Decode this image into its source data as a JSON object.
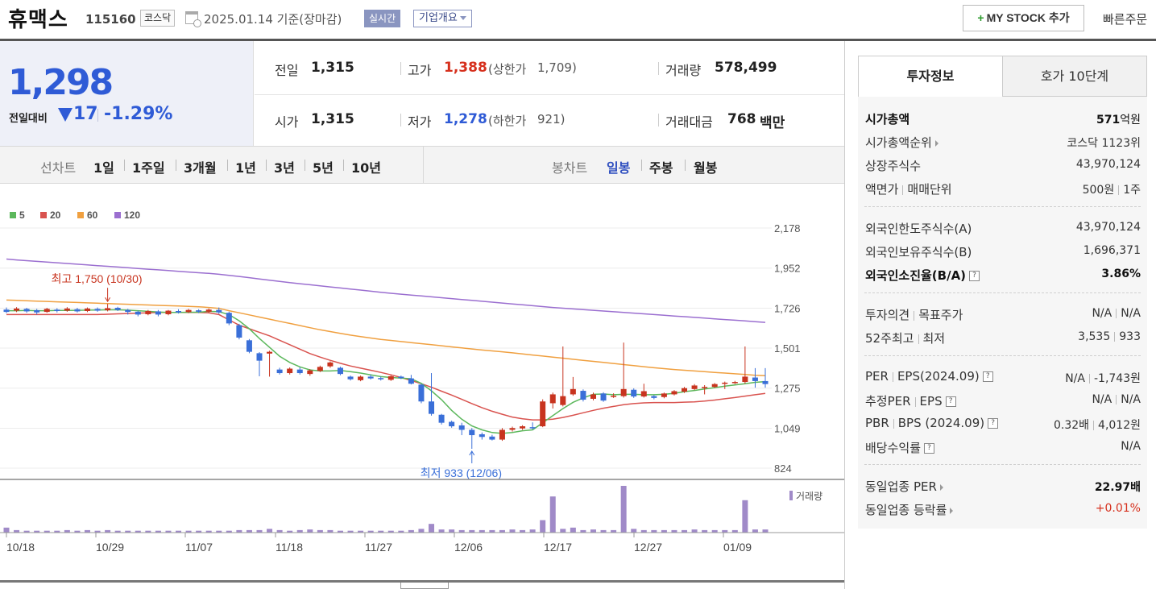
{
  "header": {
    "name": "휴맥스",
    "code": "115160",
    "market": "코스닥",
    "date_text": "2025.01.14 기준(장마감)",
    "realtime_label": "실시간",
    "company_label": "기업개요",
    "mystock_label": "MY STOCK 추가",
    "mystock_plus": "+",
    "quick_order": "빠른주문"
  },
  "price": {
    "current": "1,298",
    "change_label": "전일대비",
    "change": "17",
    "change_pct": "-1.29%"
  },
  "quote": {
    "prev_label": "전일",
    "prev": "1,315",
    "open_label": "시가",
    "open": "1,315",
    "high_label": "고가",
    "high": "1,388",
    "upper_label": "(상한가",
    "upper": "1,709)",
    "low_label": "저가",
    "low": "1,278",
    "lower_label": "(하한가",
    "lower": "921)",
    "volume_label": "거래량",
    "volume": "578,499",
    "amount_label": "거래대금",
    "amount": "768",
    "amount_unit": "백만"
  },
  "chart_tabs": {
    "line_chart": "선차트",
    "periods": [
      "1일",
      "1주일",
      "3개월",
      "1년",
      "3년",
      "5년",
      "10년"
    ],
    "candle_chart": "봉차트",
    "candle_periods": [
      "일봉",
      "주봉",
      "월봉"
    ],
    "selected_candle": "일봉"
  },
  "chart_data": {
    "type": "candlestick",
    "legend": [
      {
        "name": "5",
        "color": "#5cb85c"
      },
      {
        "name": "20",
        "color": "#d9534f"
      },
      {
        "name": "60",
        "color": "#f0a040"
      },
      {
        "name": "120",
        "color": "#9b6fd0"
      }
    ],
    "y_ticks": [
      "2,178",
      "1,952",
      "1,726",
      "1,501",
      "1,275",
      "1,049",
      "824"
    ],
    "ylim": [
      824,
      2178
    ],
    "x_ticks": [
      "10/18",
      "10/29",
      "11/07",
      "11/18",
      "11/27",
      "12/06",
      "12/17",
      "12/27",
      "01/09"
    ],
    "high_annotation": "최고 1,750 (10/30)",
    "low_annotation": "최저 933 (12/06)",
    "volume_label": "거래량",
    "candles": [
      [
        1718,
        1705,
        1730,
        1698
      ],
      [
        1712,
        1724,
        1732,
        1704
      ],
      [
        1722,
        1708,
        1728,
        1700
      ],
      [
        1715,
        1702,
        1722,
        1690
      ],
      [
        1705,
        1722,
        1728,
        1700
      ],
      [
        1718,
        1710,
        1726,
        1702
      ],
      [
        1712,
        1724,
        1732,
        1706
      ],
      [
        1720,
        1708,
        1728,
        1702
      ],
      [
        1710,
        1724,
        1730,
        1704
      ],
      [
        1722,
        1712,
        1730,
        1706
      ],
      [
        1714,
        1726,
        1750,
        1708
      ],
      [
        1728,
        1716,
        1734,
        1710
      ],
      [
        1716,
        1705,
        1722,
        1690
      ],
      [
        1706,
        1690,
        1712,
        1680
      ],
      [
        1692,
        1710,
        1716,
        1686
      ],
      [
        1708,
        1690,
        1716,
        1680
      ],
      [
        1692,
        1712,
        1716,
        1686
      ],
      [
        1710,
        1702,
        1720,
        1696
      ],
      [
        1704,
        1716,
        1722,
        1698
      ],
      [
        1714,
        1706,
        1720,
        1698
      ],
      [
        1706,
        1718,
        1724,
        1700
      ],
      [
        1716,
        1702,
        1730,
        1694
      ],
      [
        1700,
        1640,
        1706,
        1630
      ],
      [
        1630,
        1560,
        1638,
        1550
      ],
      [
        1545,
        1480,
        1552,
        1472
      ],
      [
        1472,
        1430,
        1478,
        1342
      ],
      [
        1470,
        1480,
        1486,
        1340
      ],
      [
        1380,
        1360,
        1390,
        1352
      ],
      [
        1360,
        1385,
        1392,
        1352
      ],
      [
        1380,
        1360,
        1392,
        1352
      ],
      [
        1355,
        1375,
        1382,
        1345
      ],
      [
        1372,
        1395,
        1402,
        1366
      ],
      [
        1398,
        1420,
        1426,
        1390
      ],
      [
        1390,
        1355,
        1396,
        1348
      ],
      [
        1340,
        1325,
        1346,
        1318
      ],
      [
        1320,
        1340,
        1346,
        1314
      ],
      [
        1340,
        1330,
        1352,
        1324
      ],
      [
        1332,
        1325,
        1340,
        1318
      ],
      [
        1322,
        1342,
        1348,
        1316
      ],
      [
        1340,
        1332,
        1346,
        1326
      ],
      [
        1330,
        1300,
        1350,
        1296
      ],
      [
        1295,
        1200,
        1300,
        1190
      ],
      [
        1200,
        1130,
        1360,
        1120
      ],
      [
        1125,
        1080,
        1130,
        1070
      ],
      [
        1085,
        1060,
        1092,
        1052
      ],
      [
        1065,
        1040,
        1080,
        1010
      ],
      [
        1040,
        1010,
        1050,
        933
      ],
      [
        1015,
        1000,
        1025,
        985
      ],
      [
        1002,
        985,
        1012,
        980
      ],
      [
        985,
        1040,
        1050,
        978
      ],
      [
        1040,
        1050,
        1058,
        1030
      ],
      [
        1048,
        1060,
        1066,
        1040
      ],
      [
        1055,
        1050,
        1082,
        1042
      ],
      [
        1060,
        1200,
        1212,
        1055
      ],
      [
        1190,
        1240,
        1250,
        1160
      ],
      [
        1180,
        1230,
        1510,
        1172
      ],
      [
        1240,
        1270,
        1338,
        1232
      ],
      [
        1260,
        1210,
        1268,
        1200
      ],
      [
        1215,
        1240,
        1250,
        1206
      ],
      [
        1245,
        1205,
        1252,
        1198
      ],
      [
        1228,
        1232,
        1246,
        1220
      ],
      [
        1230,
        1270,
        1532,
        1222
      ],
      [
        1266,
        1228,
        1274,
        1220
      ],
      [
        1228,
        1258,
        1300,
        1222
      ],
      [
        1230,
        1220,
        1236,
        1212
      ],
      [
        1225,
        1245,
        1250,
        1218
      ],
      [
        1240,
        1258,
        1264,
        1234
      ],
      [
        1255,
        1275,
        1282,
        1248
      ],
      [
        1270,
        1290,
        1298,
        1264
      ],
      [
        1276,
        1282,
        1292,
        1240
      ],
      [
        1282,
        1298,
        1304,
        1276
      ],
      [
        1300,
        1306,
        1312,
        1270
      ],
      [
        1303,
        1310,
        1316,
        1298
      ],
      [
        1310,
        1340,
        1510,
        1300
      ],
      [
        1335,
        1315,
        1388,
        1278
      ],
      [
        1315,
        1298,
        1388,
        1278
      ]
    ],
    "volumes": [
      8,
      4,
      3,
      3,
      3,
      3,
      4,
      3,
      4,
      3,
      4,
      3,
      3,
      3,
      3,
      3,
      3,
      3,
      3,
      3,
      3,
      3,
      3,
      4,
      4,
      4,
      6,
      4,
      3,
      4,
      5,
      4,
      4,
      3,
      3,
      3,
      3,
      3,
      3,
      3,
      4,
      6,
      14,
      5,
      5,
      4,
      4,
      4,
      4,
      4,
      5,
      4,
      5,
      20,
      58,
      6,
      8,
      4,
      5,
      4,
      4,
      75,
      6,
      4,
      4,
      4,
      4,
      4,
      5,
      4,
      4,
      4,
      4,
      52,
      5,
      5
    ],
    "ma5": [
      1712,
      1712,
      1713,
      1712,
      1712,
      1713,
      1713,
      1714,
      1715,
      1716,
      1717,
      1717,
      1715,
      1712,
      1708,
      1704,
      1702,
      1702,
      1703,
      1703,
      1708,
      1706,
      1690,
      1655,
      1610,
      1555,
      1505,
      1455,
      1420,
      1395,
      1378,
      1372,
      1372,
      1375,
      1368,
      1360,
      1350,
      1340,
      1335,
      1332,
      1328,
      1302,
      1260,
      1210,
      1150,
      1100,
      1062,
      1040,
      1025,
      1020,
      1025,
      1035,
      1040,
      1080,
      1120,
      1160,
      1195,
      1220,
      1240,
      1242,
      1238,
      1240,
      1240,
      1238,
      1238,
      1240,
      1246,
      1255,
      1262,
      1270,
      1278,
      1286,
      1293,
      1300,
      1308,
      1312
    ],
    "ma20": [
      1690,
      1690,
      1690,
      1690,
      1690,
      1690,
      1690,
      1690,
      1690,
      1690,
      1692,
      1694,
      1696,
      1698,
      1700,
      1702,
      1702,
      1702,
      1702,
      1702,
      1700,
      1690,
      1660,
      1630,
      1610,
      1590,
      1570,
      1545,
      1520,
      1495,
      1470,
      1450,
      1432,
      1415,
      1400,
      1388,
      1376,
      1364,
      1350,
      1335,
      1318,
      1300,
      1280,
      1258,
      1236,
      1212,
      1188,
      1165,
      1145,
      1128,
      1112,
      1102,
      1096,
      1096,
      1100,
      1110,
      1122,
      1136,
      1150,
      1162,
      1172,
      1182,
      1188,
      1192,
      1194,
      1194,
      1194,
      1196,
      1198,
      1202,
      1208,
      1215,
      1222,
      1230,
      1238,
      1245
    ],
    "ma60": [
      1772,
      1770,
      1768,
      1766,
      1764,
      1762,
      1760,
      1758,
      1756,
      1754,
      1752,
      1750,
      1748,
      1746,
      1744,
      1742,
      1740,
      1738,
      1736,
      1734,
      1730,
      1725,
      1712,
      1700,
      1688,
      1676,
      1664,
      1652,
      1640,
      1628,
      1616,
      1604,
      1594,
      1584,
      1574,
      1566,
      1558,
      1550,
      1544,
      1538,
      1532,
      1526,
      1520,
      1514,
      1508,
      1502,
      1496,
      1490,
      1485,
      1480,
      1474,
      1468,
      1462,
      1456,
      1450,
      1444,
      1438,
      1432,
      1426,
      1420,
      1414,
      1408,
      1402,
      1396,
      1390,
      1385,
      1380,
      1376,
      1372,
      1368,
      1364,
      1360,
      1356,
      1352,
      1348,
      1345
    ],
    "ma120": [
      2003,
      1998,
      1994,
      1990,
      1986,
      1982,
      1978,
      1974,
      1970,
      1966,
      1962,
      1958,
      1954,
      1950,
      1946,
      1942,
      1938,
      1934,
      1930,
      1926,
      1922,
      1917,
      1911,
      1905,
      1898,
      1891,
      1884,
      1877,
      1870,
      1864,
      1858,
      1852,
      1846,
      1840,
      1834,
      1828,
      1822,
      1816,
      1810,
      1805,
      1800,
      1795,
      1790,
      1785,
      1780,
      1775,
      1770,
      1765,
      1760,
      1755,
      1750,
      1745,
      1740,
      1735,
      1730,
      1726,
      1722,
      1718,
      1714,
      1710,
      1706,
      1702,
      1698,
      1694,
      1690,
      1686,
      1682,
      1678,
      1674,
      1670,
      1666,
      1662,
      1658,
      1654,
      1650,
      1646
    ]
  },
  "right_panel": {
    "tab_info": "투자정보",
    "tab_order": "호가 10단계",
    "market_cap_label": "시가총액",
    "market_cap": "571",
    "market_cap_unit": "억원",
    "cap_rank_label": "시가총액순위",
    "cap_rank": "코스닥 1123위",
    "shares_label": "상장주식수",
    "shares": "43,970,124",
    "par_label": "액면가",
    "par_unit_label": "매매단위",
    "par": "500원",
    "trade_unit": "1주",
    "foreign_limit_label": "외국인한도주식수(A)",
    "foreign_limit": "43,970,124",
    "foreign_hold_label": "외국인보유주식수(B)",
    "foreign_hold": "1,696,371",
    "foreign_ratio_label": "외국인소진율(B/A)",
    "foreign_ratio": "3.86%",
    "opinion_label": "투자의견",
    "target_label": "목표주가",
    "opinion": "N/A",
    "target": "N/A",
    "w52_label": "52주최고",
    "w52_low_label": "최저",
    "w52_high": "3,535",
    "w52_low": "933",
    "per_label": "PER",
    "eps_label": "EPS(2024.09)",
    "per": "N/A",
    "eps": "-1,743원",
    "est_per_label": "추정PER",
    "est_eps_label": "EPS",
    "est_per": "N/A",
    "est_eps": "N/A",
    "pbr_label": "PBR",
    "bps_label": "BPS (2024.09)",
    "pbr": "0.32배",
    "bps": "4,012원",
    "div_label": "배당수익률",
    "div": "N/A",
    "sector_per_label": "동일업종 PER",
    "sector_per": "22.97",
    "sector_per_unit": "배",
    "sector_rate_label": "동일업종 등락률",
    "sector_rate": "+0.01%",
    "help_glyph": "?"
  }
}
